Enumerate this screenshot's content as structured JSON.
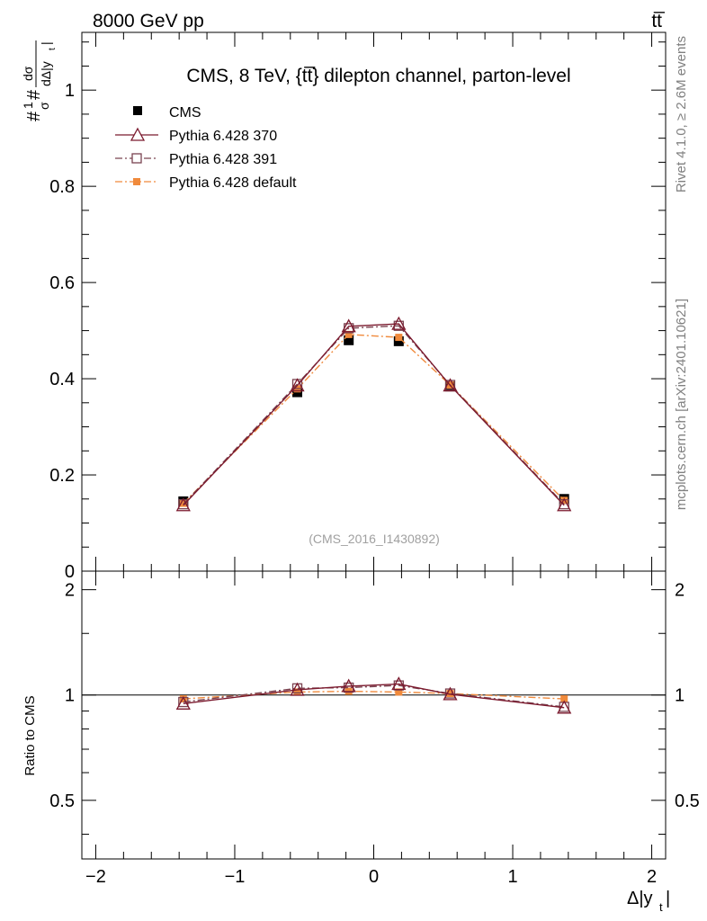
{
  "header": {
    "energy_label": "8000 GeV pp",
    "process_label": "tt̅"
  },
  "side_labels": {
    "rivet": "Rivet 4.1.0, ≥ 2.6M events",
    "mcplots": "mcplots.cern.ch [arXiv:2401.10621]"
  },
  "chart_data": [
    {
      "type": "line",
      "panel": "main",
      "title": "CMS, 8 TeV, {tt̅} dilepton channel, parton-level",
      "watermark": "(CMS_2016_I1430892)",
      "ylabel": "#1/σ#dσ/dΔ|y_t|",
      "ylabel_parts": {
        "prefix": "#",
        "one": "1",
        "sigma": "σ",
        "hash": "#",
        "dsigma": "dσ",
        "ddy": "dΔ|y",
        "sub": "t",
        "bar": "|"
      },
      "xlim": [
        -2.1,
        2.1
      ],
      "ylim": [
        0,
        1.12
      ],
      "yticks": [
        0,
        0.2,
        0.4,
        0.6,
        0.8,
        1
      ],
      "ytick_labels": [
        "0",
        "0.2",
        "0.4",
        "0.6",
        "0.8",
        "1"
      ],
      "x": [
        -1.37,
        -0.55,
        -0.18,
        0.18,
        0.55,
        1.37
      ],
      "series": [
        {
          "name": "CMS",
          "color": "#000000",
          "marker": "square-filled",
          "line": "none",
          "values": [
            0.145,
            0.372,
            0.48,
            0.478,
            0.384,
            0.15
          ]
        },
        {
          "name": "Pythia 6.428 370",
          "color": "#7b1a2e",
          "marker": "triangle-open",
          "line": "solid",
          "values": [
            0.137,
            0.386,
            0.509,
            0.514,
            0.386,
            0.137
          ]
        },
        {
          "name": "Pythia 6.428 391",
          "color": "#7a4350",
          "marker": "square-open",
          "line": "dashdot",
          "values": [
            0.139,
            0.389,
            0.505,
            0.51,
            0.387,
            0.139
          ]
        },
        {
          "name": "Pythia 6.428 default",
          "color": "#f08a3c",
          "marker": "square-filled-small",
          "line": "dashdot",
          "values": [
            0.141,
            0.379,
            0.492,
            0.486,
            0.387,
            0.147
          ]
        }
      ]
    },
    {
      "type": "line",
      "panel": "ratio",
      "ylabel": "Ratio to CMS",
      "xlabel": "Δ|y_t|",
      "xlabel_parts": {
        "main": "Δ|y",
        "sub": "t",
        "bar": "|"
      },
      "xlim": [
        -2.1,
        2.1
      ],
      "ylim": [
        0.34,
        2.26
      ],
      "yticks": [
        0.5,
        1,
        2
      ],
      "ytick_labels": [
        "0.5",
        "1",
        "2"
      ],
      "xticks": [
        -2,
        -1,
        0,
        1,
        2
      ],
      "xtick_labels": [
        "−2",
        "−1",
        "0",
        "1",
        "2"
      ],
      "reference_line": 1,
      "x": [
        -1.37,
        -0.55,
        -0.18,
        0.18,
        0.55,
        1.37
      ],
      "series": [
        {
          "name": "Pythia 6.428 370",
          "color": "#7b1a2e",
          "marker": "triangle-open",
          "line": "solid",
          "values": [
            0.945,
            1.035,
            1.06,
            1.075,
            1.005,
            0.92
          ]
        },
        {
          "name": "Pythia 6.428 391",
          "color": "#7a4350",
          "marker": "square-open",
          "line": "dashdot",
          "values": [
            0.955,
            1.045,
            1.05,
            1.065,
            1.01,
            0.925
          ]
        },
        {
          "name": "Pythia 6.428 default",
          "color": "#f08a3c",
          "marker": "square-filled-small",
          "line": "dashdot",
          "values": [
            0.975,
            1.02,
            1.025,
            1.02,
            1.01,
            0.975
          ]
        }
      ]
    }
  ]
}
